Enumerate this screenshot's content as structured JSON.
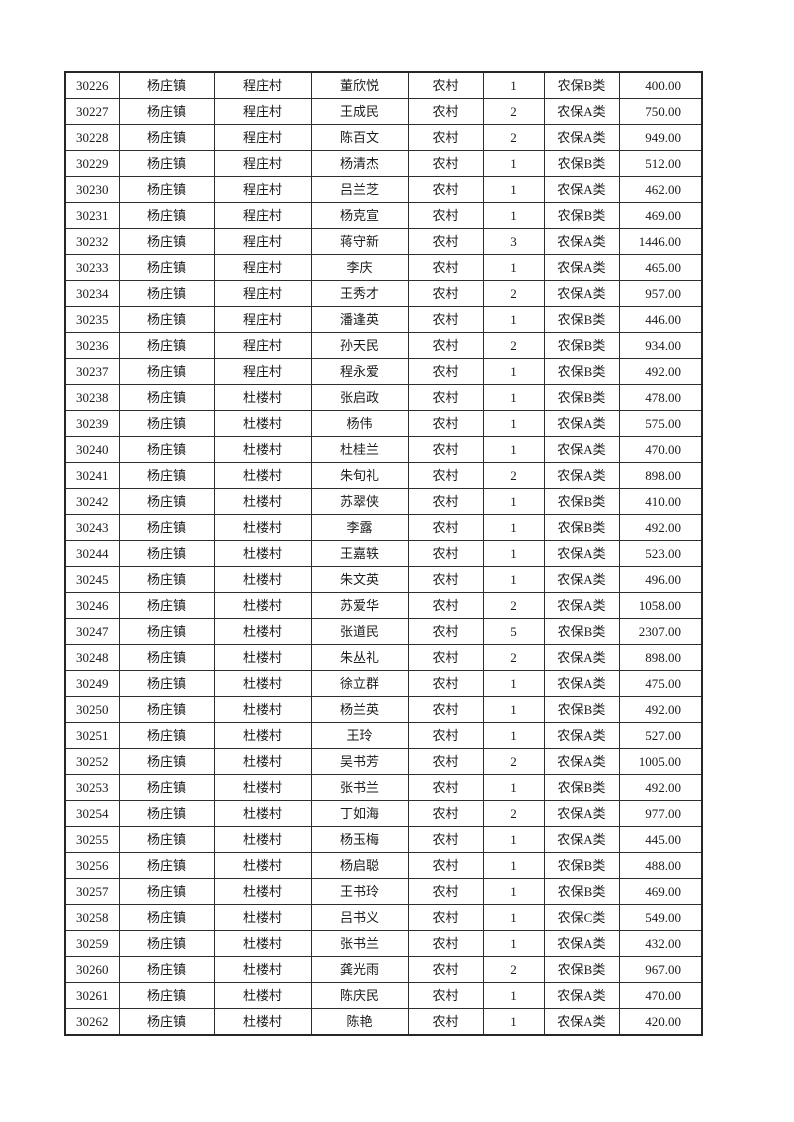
{
  "document": {
    "kind": "pension-payment-roster-page",
    "background_color": "#ffffff",
    "text_color": "#1a1a1a",
    "border_color": "#2e2e2e"
  },
  "table": {
    "column_keys": [
      "id",
      "town",
      "village",
      "name",
      "residence",
      "count",
      "type",
      "amount"
    ],
    "rows": [
      [
        "30226",
        "杨庄镇",
        "程庄村",
        "董欣悦",
        "农村",
        "1",
        "农保B类",
        "400.00"
      ],
      [
        "30227",
        "杨庄镇",
        "程庄村",
        "王成民",
        "农村",
        "2",
        "农保A类",
        "750.00"
      ],
      [
        "30228",
        "杨庄镇",
        "程庄村",
        "陈百文",
        "农村",
        "2",
        "农保A类",
        "949.00"
      ],
      [
        "30229",
        "杨庄镇",
        "程庄村",
        "杨清杰",
        "农村",
        "1",
        "农保B类",
        "512.00"
      ],
      [
        "30230",
        "杨庄镇",
        "程庄村",
        "吕兰芝",
        "农村",
        "1",
        "农保A类",
        "462.00"
      ],
      [
        "30231",
        "杨庄镇",
        "程庄村",
        "杨克宣",
        "农村",
        "1",
        "农保B类",
        "469.00"
      ],
      [
        "30232",
        "杨庄镇",
        "程庄村",
        "蒋守新",
        "农村",
        "3",
        "农保A类",
        "1446.00"
      ],
      [
        "30233",
        "杨庄镇",
        "程庄村",
        "李庆",
        "农村",
        "1",
        "农保A类",
        "465.00"
      ],
      [
        "30234",
        "杨庄镇",
        "程庄村",
        "王秀才",
        "农村",
        "2",
        "农保A类",
        "957.00"
      ],
      [
        "30235",
        "杨庄镇",
        "程庄村",
        "潘逢英",
        "农村",
        "1",
        "农保B类",
        "446.00"
      ],
      [
        "30236",
        "杨庄镇",
        "程庄村",
        "孙天民",
        "农村",
        "2",
        "农保B类",
        "934.00"
      ],
      [
        "30237",
        "杨庄镇",
        "程庄村",
        "程永爱",
        "农村",
        "1",
        "农保B类",
        "492.00"
      ],
      [
        "30238",
        "杨庄镇",
        "杜楼村",
        "张启政",
        "农村",
        "1",
        "农保B类",
        "478.00"
      ],
      [
        "30239",
        "杨庄镇",
        "杜楼村",
        "杨伟",
        "农村",
        "1",
        "农保A类",
        "575.00"
      ],
      [
        "30240",
        "杨庄镇",
        "杜楼村",
        "杜桂兰",
        "农村",
        "1",
        "农保A类",
        "470.00"
      ],
      [
        "30241",
        "杨庄镇",
        "杜楼村",
        "朱旬礼",
        "农村",
        "2",
        "农保A类",
        "898.00"
      ],
      [
        "30242",
        "杨庄镇",
        "杜楼村",
        "苏翠侠",
        "农村",
        "1",
        "农保B类",
        "410.00"
      ],
      [
        "30243",
        "杨庄镇",
        "杜楼村",
        "李露",
        "农村",
        "1",
        "农保B类",
        "492.00"
      ],
      [
        "30244",
        "杨庄镇",
        "杜楼村",
        "王嘉轶",
        "农村",
        "1",
        "农保A类",
        "523.00"
      ],
      [
        "30245",
        "杨庄镇",
        "杜楼村",
        "朱文英",
        "农村",
        "1",
        "农保A类",
        "496.00"
      ],
      [
        "30246",
        "杨庄镇",
        "杜楼村",
        "苏爱华",
        "农村",
        "2",
        "农保A类",
        "1058.00"
      ],
      [
        "30247",
        "杨庄镇",
        "杜楼村",
        "张道民",
        "农村",
        "5",
        "农保B类",
        "2307.00"
      ],
      [
        "30248",
        "杨庄镇",
        "杜楼村",
        "朱丛礼",
        "农村",
        "2",
        "农保A类",
        "898.00"
      ],
      [
        "30249",
        "杨庄镇",
        "杜楼村",
        "徐立群",
        "农村",
        "1",
        "农保A类",
        "475.00"
      ],
      [
        "30250",
        "杨庄镇",
        "杜楼村",
        "杨兰英",
        "农村",
        "1",
        "农保B类",
        "492.00"
      ],
      [
        "30251",
        "杨庄镇",
        "杜楼村",
        "王玲",
        "农村",
        "1",
        "农保A类",
        "527.00"
      ],
      [
        "30252",
        "杨庄镇",
        "杜楼村",
        "吴书芳",
        "农村",
        "2",
        "农保A类",
        "1005.00"
      ],
      [
        "30253",
        "杨庄镇",
        "杜楼村",
        "张书兰",
        "农村",
        "1",
        "农保B类",
        "492.00"
      ],
      [
        "30254",
        "杨庄镇",
        "杜楼村",
        "丁如海",
        "农村",
        "2",
        "农保A类",
        "977.00"
      ],
      [
        "30255",
        "杨庄镇",
        "杜楼村",
        "杨玉梅",
        "农村",
        "1",
        "农保A类",
        "445.00"
      ],
      [
        "30256",
        "杨庄镇",
        "杜楼村",
        "杨启聪",
        "农村",
        "1",
        "农保B类",
        "488.00"
      ],
      [
        "30257",
        "杨庄镇",
        "杜楼村",
        "王书玲",
        "农村",
        "1",
        "农保B类",
        "469.00"
      ],
      [
        "30258",
        "杨庄镇",
        "杜楼村",
        "吕书义",
        "农村",
        "1",
        "农保C类",
        "549.00"
      ],
      [
        "30259",
        "杨庄镇",
        "杜楼村",
        "张书兰",
        "农村",
        "1",
        "农保A类",
        "432.00"
      ],
      [
        "30260",
        "杨庄镇",
        "杜楼村",
        "龚光雨",
        "农村",
        "2",
        "农保B类",
        "967.00"
      ],
      [
        "30261",
        "杨庄镇",
        "杜楼村",
        "陈庆民",
        "农村",
        "1",
        "农保A类",
        "470.00"
      ],
      [
        "30262",
        "杨庄镇",
        "杜楼村",
        "陈艳",
        "农村",
        "1",
        "农保A类",
        "420.00"
      ]
    ]
  }
}
